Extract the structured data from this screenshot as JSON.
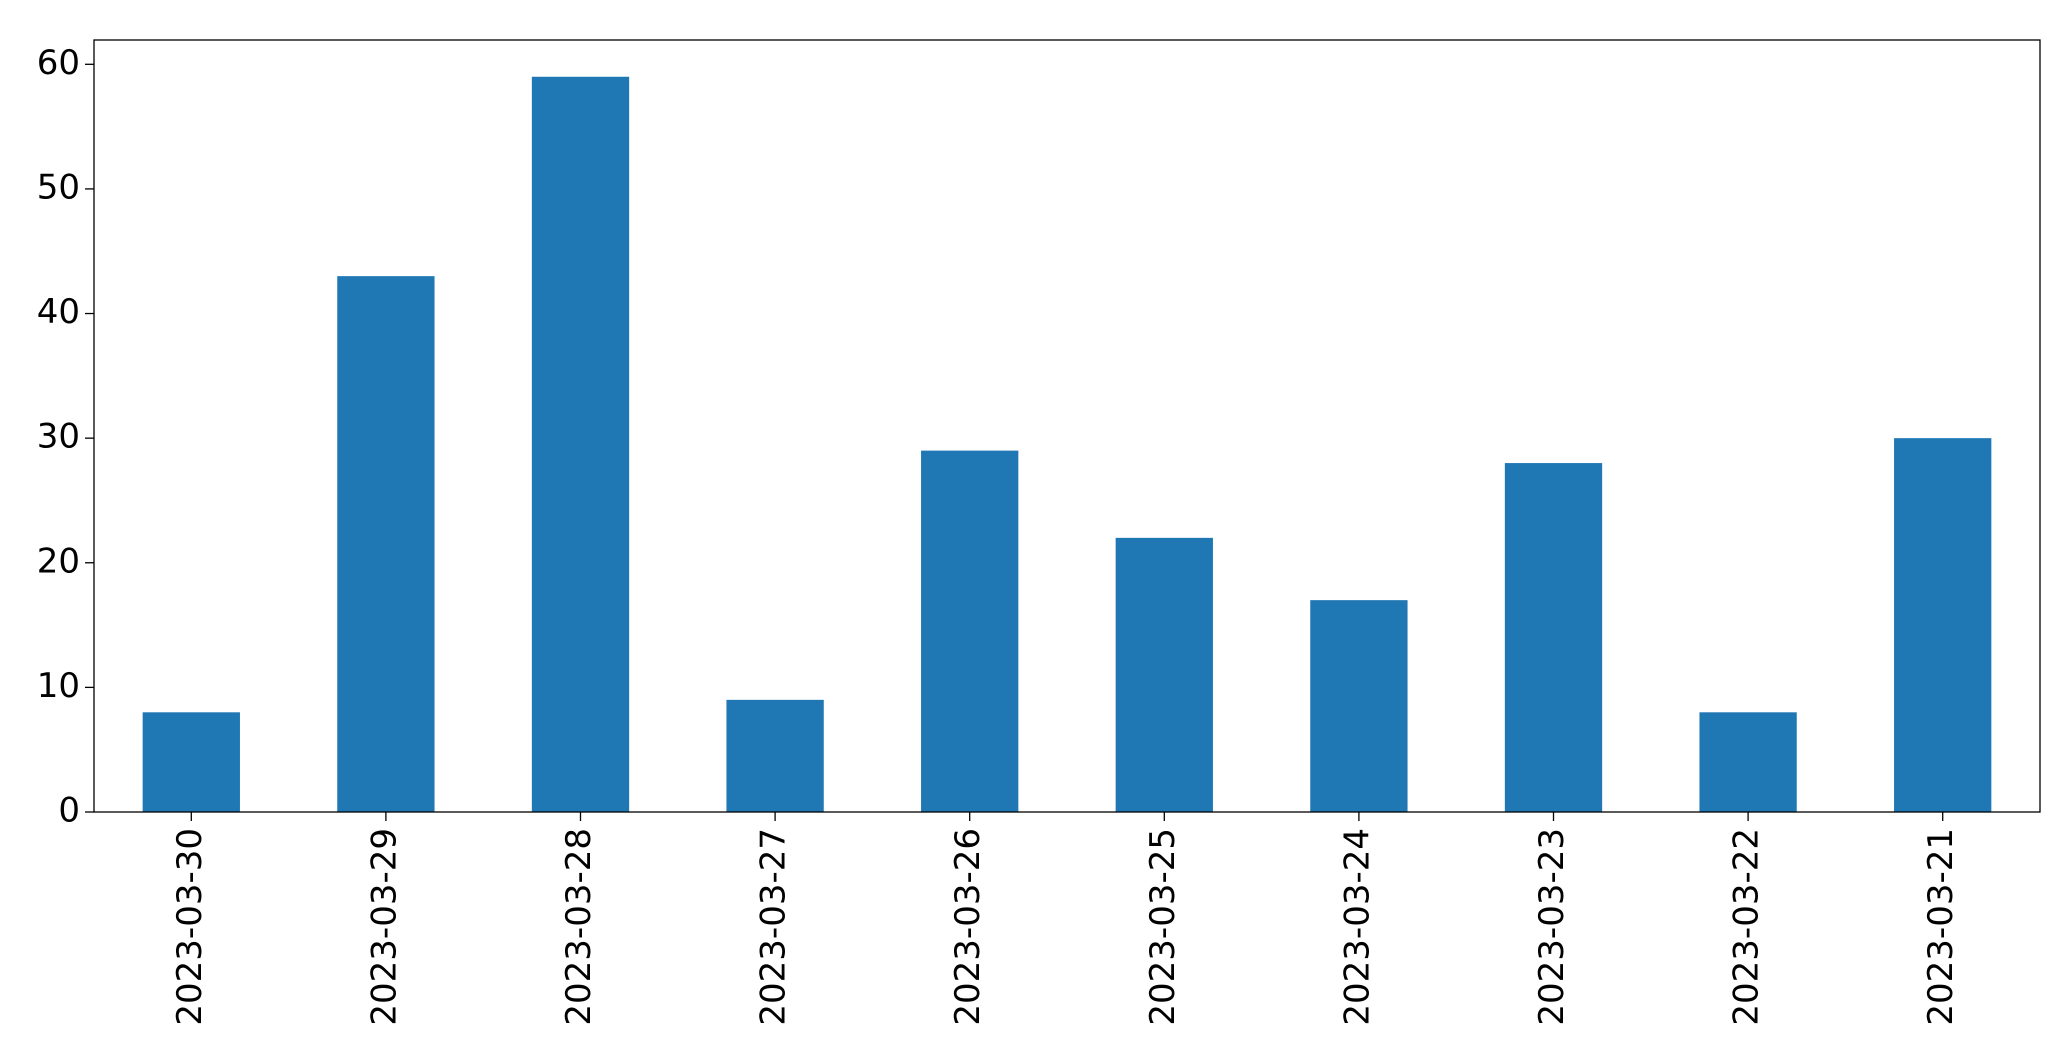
{
  "chart_data": {
    "type": "bar",
    "categories": [
      "2023-03-30",
      "2023-03-29",
      "2023-03-28",
      "2023-03-27",
      "2023-03-26",
      "2023-03-25",
      "2023-03-24",
      "2023-03-23",
      "2023-03-22",
      "2023-03-21"
    ],
    "values": [
      8,
      43,
      59,
      9,
      29,
      22,
      17,
      28,
      8,
      30
    ],
    "color": "#1f77b4",
    "ylim": [
      0,
      61.95
    ],
    "yticks": [
      0,
      10,
      20,
      30,
      40,
      50,
      60
    ],
    "grid": false
  }
}
